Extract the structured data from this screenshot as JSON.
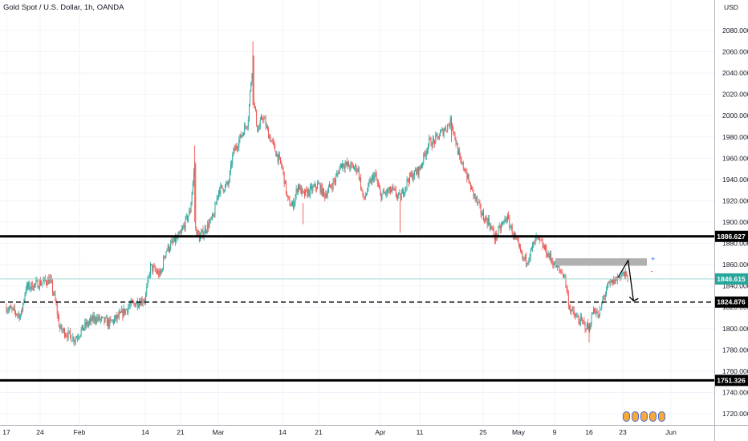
{
  "header": {
    "title": "Gold Spot / U.S. Dollar, 1h, OANDA"
  },
  "axis": {
    "currency_label": "USD"
  },
  "colors": {
    "up": "#26a69a",
    "down": "#ef5350",
    "grid": "#f0f3fa",
    "current_price_line": "#9fdad3",
    "current_price_tag": "#26a69a",
    "level_line": "#000000",
    "zone": "#b0b0b0"
  },
  "icons": [
    "logo-icon",
    "plus-icon"
  ],
  "chart_data": {
    "type": "candlestick",
    "title": "Gold Spot / U.S. Dollar, 1h, OANDA",
    "ylabel": "USD",
    "ylim": [
      1710,
      2100
    ],
    "y_ticks": [
      "2080.000",
      "2060.000",
      "2040.000",
      "2020.000",
      "2000.000",
      "1980.000",
      "1960.000",
      "1940.000",
      "1920.000",
      "1900.000",
      "1880.000",
      "1860.000",
      "1840.000",
      "1820.000",
      "1800.000",
      "1780.000",
      "1760.000",
      "1740.000",
      "1720.000"
    ],
    "x_ticks": [
      "17",
      "24",
      "Feb",
      "14",
      "21",
      "Mar",
      "14",
      "21",
      "Apr",
      "11",
      "25",
      "May",
      "9",
      "16",
      "23",
      "Jun"
    ],
    "approx_close_path": [
      {
        "x": "Jan 17",
        "y": 1820
      },
      {
        "x": "Jan 20",
        "y": 1812
      },
      {
        "x": "Jan 21",
        "y": 1838
      },
      {
        "x": "Jan 24",
        "y": 1843
      },
      {
        "x": "Jan 26",
        "y": 1846
      },
      {
        "x": "Jan 27",
        "y": 1828
      },
      {
        "x": "Jan 28",
        "y": 1800
      },
      {
        "x": "Jan 31",
        "y": 1790
      },
      {
        "x": "Feb 2",
        "y": 1802
      },
      {
        "x": "Feb 4",
        "y": 1810
      },
      {
        "x": "Feb 7",
        "y": 1805
      },
      {
        "x": "Feb 9",
        "y": 1812
      },
      {
        "x": "Feb 11",
        "y": 1822
      },
      {
        "x": "Feb 14",
        "y": 1828
      },
      {
        "x": "Feb 15",
        "y": 1858
      },
      {
        "x": "Feb 17",
        "y": 1850
      },
      {
        "x": "Feb 18",
        "y": 1873
      },
      {
        "x": "Feb 21",
        "y": 1888
      },
      {
        "x": "Feb 22",
        "y": 1900
      },
      {
        "x": "Feb 23",
        "y": 1910
      },
      {
        "x": "Feb 24",
        "y": 1955
      },
      {
        "x": "Feb 24",
        "y": 1895
      },
      {
        "x": "Feb 25",
        "y": 1885
      },
      {
        "x": "Feb 28",
        "y": 1905
      },
      {
        "x": "Mar 1",
        "y": 1930
      },
      {
        "x": "Mar 3",
        "y": 1935
      },
      {
        "x": "Mar 4",
        "y": 1965
      },
      {
        "x": "Mar 7",
        "y": 1995
      },
      {
        "x": "Mar 8",
        "y": 2055
      },
      {
        "x": "Mar 8",
        "y": 2020
      },
      {
        "x": "Mar 9",
        "y": 1985
      },
      {
        "x": "Mar 10",
        "y": 2000
      },
      {
        "x": "Mar 11",
        "y": 1985
      },
      {
        "x": "Mar 14",
        "y": 1950
      },
      {
        "x": "Mar 15",
        "y": 1920
      },
      {
        "x": "Mar 16",
        "y": 1915
      },
      {
        "x": "Mar 17",
        "y": 1935
      },
      {
        "x": "Mar 18",
        "y": 1925
      },
      {
        "x": "Mar 21",
        "y": 1935
      },
      {
        "x": "Mar 22",
        "y": 1925
      },
      {
        "x": "Mar 24",
        "y": 1940
      },
      {
        "x": "Mar 25",
        "y": 1955
      },
      {
        "x": "Mar 28",
        "y": 1950
      },
      {
        "x": "Mar 29",
        "y": 1920
      },
      {
        "x": "Mar 30",
        "y": 1935
      },
      {
        "x": "Mar 31",
        "y": 1945
      },
      {
        "x": "Apr 1",
        "y": 1925
      },
      {
        "x": "Apr 4",
        "y": 1930
      },
      {
        "x": "Apr 6",
        "y": 1922
      },
      {
        "x": "Apr 8",
        "y": 1940
      },
      {
        "x": "Apr 11",
        "y": 1950
      },
      {
        "x": "Apr 13",
        "y": 1975
      },
      {
        "x": "Apr 14",
        "y": 1975
      },
      {
        "x": "Apr 18",
        "y": 1995
      },
      {
        "x": "Apr 19",
        "y": 1975
      },
      {
        "x": "Apr 20",
        "y": 1955
      },
      {
        "x": "Apr 21",
        "y": 1950
      },
      {
        "x": "Apr 22",
        "y": 1935
      },
      {
        "x": "Apr 25",
        "y": 1905
      },
      {
        "x": "Apr 26",
        "y": 1900
      },
      {
        "x": "Apr 27",
        "y": 1885
      },
      {
        "x": "Apr 28",
        "y": 1895
      },
      {
        "x": "Apr 29",
        "y": 1905
      },
      {
        "x": "May 2",
        "y": 1865
      },
      {
        "x": "May 3",
        "y": 1865
      },
      {
        "x": "May 5",
        "y": 1885
      },
      {
        "x": "May 6",
        "y": 1880
      },
      {
        "x": "May 9",
        "y": 1860
      },
      {
        "x": "May 10",
        "y": 1855
      },
      {
        "x": "May 11",
        "y": 1850
      },
      {
        "x": "May 12",
        "y": 1820
      },
      {
        "x": "May 13",
        "y": 1812
      },
      {
        "x": "May 16",
        "y": 1800
      },
      {
        "x": "May 17",
        "y": 1820
      },
      {
        "x": "May 18",
        "y": 1810
      },
      {
        "x": "May 19",
        "y": 1830
      },
      {
        "x": "May 20",
        "y": 1840
      },
      {
        "x": "May 23",
        "y": 1852
      },
      {
        "x": "May 24",
        "y": 1846.615
      }
    ],
    "horizontal_levels": [
      {
        "price": 1886.627,
        "label": "1886.627",
        "style": "solid"
      },
      {
        "price": 1824.876,
        "label": "1824.876",
        "style": "dashed"
      },
      {
        "price": 1751.326,
        "label": "1751.326",
        "style": "solid"
      }
    ],
    "current_price": {
      "price": 1846.615,
      "label": "1846.615"
    },
    "zone": {
      "price_top": 1866,
      "price_bottom": 1859
    },
    "projection": [
      {
        "x": "May 22",
        "y": 1848
      },
      {
        "x": "May 24",
        "y": 1864
      },
      {
        "x": "May 25",
        "y": 1826
      }
    ]
  }
}
